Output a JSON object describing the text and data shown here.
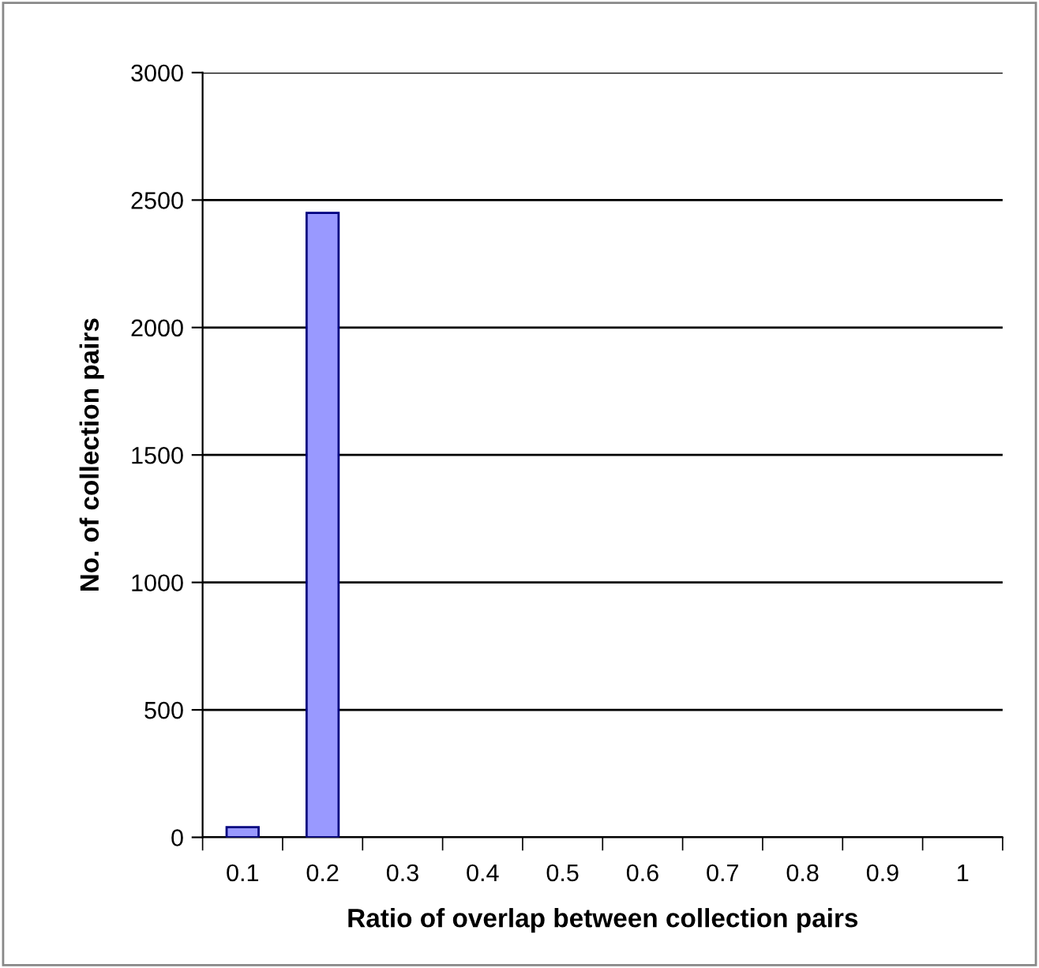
{
  "chart_data": {
    "type": "bar",
    "xlabel": "Ratio of overlap between collection pairs",
    "ylabel": "No. of collection pairs",
    "categories": [
      "0.1",
      "0.2",
      "0.3",
      "0.4",
      "0.5",
      "0.6",
      "0.7",
      "0.8",
      "0.9",
      "1"
    ],
    "values": [
      40,
      2450,
      0,
      0,
      0,
      0,
      0,
      0,
      0,
      0
    ],
    "color": "#9999ff",
    "ylim": [
      0,
      3000
    ],
    "yticks": [
      0,
      500,
      1000,
      1500,
      2000,
      2500,
      3000
    ],
    "grid": "y"
  }
}
